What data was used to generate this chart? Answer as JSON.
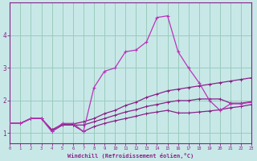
{
  "xlabel": "Windchill (Refroidissement éolien,°C)",
  "bg_color": "#c8e8e8",
  "grid_color": "#99ccbb",
  "line_color_dark": "#882288",
  "line_color_bright": "#bb33bb",
  "x_ticks": [
    0,
    1,
    2,
    3,
    4,
    5,
    6,
    7,
    8,
    9,
    10,
    11,
    12,
    13,
    14,
    15,
    16,
    17,
    18,
    19,
    20,
    21,
    22,
    23
  ],
  "y_ticks": [
    1,
    2,
    3,
    4
  ],
  "ylim": [
    0.7,
    5.0
  ],
  "xlim": [
    0,
    23
  ],
  "series_spiky_x": [
    0,
    1,
    2,
    3,
    4,
    5,
    6,
    7,
    8,
    9,
    10,
    11,
    12,
    13,
    14,
    15,
    16,
    17,
    18,
    19,
    20,
    21,
    22,
    23
  ],
  "series_spiky_y": [
    1.3,
    1.3,
    1.45,
    1.45,
    1.05,
    1.3,
    1.3,
    1.05,
    2.4,
    2.9,
    3.0,
    3.5,
    3.55,
    3.8,
    4.55,
    4.6,
    3.5,
    3.0,
    2.55,
    2.0,
    1.7,
    1.9,
    1.9,
    1.95
  ],
  "series_upper_x": [
    0,
    1,
    2,
    3,
    4,
    5,
    6,
    7,
    8,
    9,
    10,
    11,
    12,
    13,
    14,
    15,
    16,
    17,
    18,
    19,
    20,
    21,
    22,
    23
  ],
  "series_upper_y": [
    1.3,
    1.3,
    1.45,
    1.45,
    1.1,
    1.28,
    1.28,
    1.35,
    1.45,
    1.6,
    1.7,
    1.85,
    1.95,
    2.1,
    2.2,
    2.3,
    2.35,
    2.4,
    2.45,
    2.5,
    2.55,
    2.6,
    2.65,
    2.7
  ],
  "series_mid_x": [
    0,
    1,
    2,
    3,
    4,
    5,
    6,
    7,
    8,
    9,
    10,
    11,
    12,
    13,
    14,
    15,
    16,
    17,
    18,
    19,
    20,
    21,
    22,
    23
  ],
  "series_mid_y": [
    1.3,
    1.3,
    1.45,
    1.45,
    1.1,
    1.25,
    1.25,
    1.25,
    1.35,
    1.45,
    1.55,
    1.65,
    1.72,
    1.82,
    1.88,
    1.95,
    2.0,
    2.0,
    2.05,
    2.05,
    2.05,
    1.92,
    1.92,
    1.97
  ],
  "series_lower_x": [
    0,
    1,
    2,
    3,
    4,
    5,
    6,
    7,
    8,
    9,
    10,
    11,
    12,
    13,
    14,
    15,
    16,
    17,
    18,
    19,
    20,
    21,
    22,
    23
  ],
  "series_lower_y": [
    1.3,
    1.3,
    1.45,
    1.45,
    1.05,
    1.25,
    1.25,
    1.05,
    1.2,
    1.3,
    1.38,
    1.45,
    1.52,
    1.6,
    1.65,
    1.7,
    1.62,
    1.62,
    1.65,
    1.68,
    1.72,
    1.78,
    1.82,
    1.88
  ]
}
